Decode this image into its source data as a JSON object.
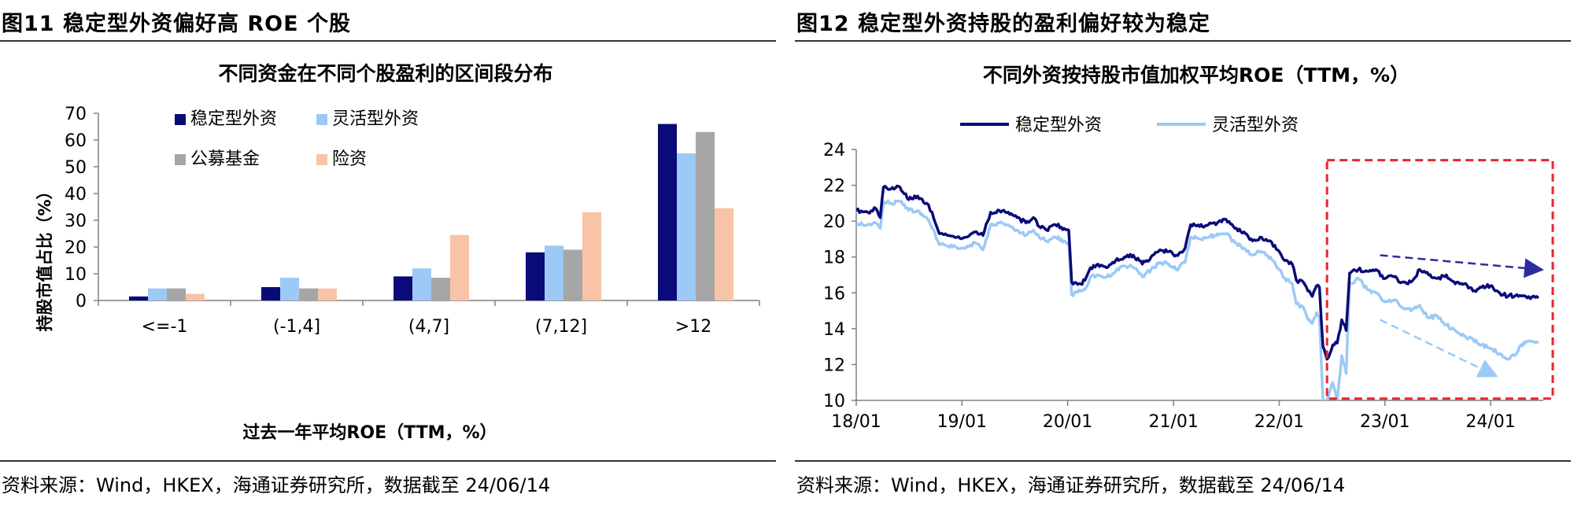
{
  "left": {
    "figure_title": "图11 稳定型外资偏好高 ROE 个股",
    "source": "资料来源：Wind，HKEX，海通证券研究所，数据截至 24/06/14"
  },
  "right": {
    "figure_title": "图12 稳定型外资持股的盈利偏好较为稳定",
    "source": "资料来源：Wind，HKEX，海通证券研究所，数据截至 24/06/14"
  },
  "chart_data": [
    {
      "type": "bar",
      "title": "不同资金在不同个股盈利的区间段分布",
      "xlabel": "过去一年平均ROE（TTM，%）",
      "ylabel": "持股市值占比（%）",
      "ylim": [
        0,
        70
      ],
      "yticks": [
        0,
        10,
        20,
        30,
        40,
        50,
        60,
        70
      ],
      "categories": [
        "<=-1",
        "(-1,4]",
        "(4,7]",
        "(7,12]",
        ">12"
      ],
      "series": [
        {
          "name": "稳定型外资",
          "color": "#0a0a78",
          "values": [
            1.5,
            5,
            9,
            18,
            66
          ]
        },
        {
          "name": "灵活型外资",
          "color": "#9cc9f6",
          "values": [
            4.5,
            8.5,
            12,
            20.5,
            55
          ]
        },
        {
          "name": "公募基金",
          "color": "#a6a6a6",
          "values": [
            4.5,
            4.5,
            8.5,
            19,
            63
          ]
        },
        {
          "name": "险资",
          "color": "#f8c3a6",
          "values": [
            2.5,
            4.5,
            24.5,
            33,
            34.5
          ]
        }
      ],
      "legend": "top-left, two columns",
      "grid": false
    },
    {
      "type": "line",
      "title": "不同外资按持股市值加权平均ROE（TTM，%）",
      "ylim": [
        10,
        24
      ],
      "yticks": [
        10,
        12,
        14,
        16,
        18,
        20,
        22,
        24
      ],
      "xlim": [
        "2018-01-01",
        "2024-07-01"
      ],
      "xticks": [
        "18/01",
        "19/01",
        "20/01",
        "21/01",
        "22/01",
        "23/01",
        "24/01"
      ],
      "legend": "top-center",
      "grid": false,
      "annotations": [
        "red dashed box from about 2022-06 to the end",
        "dashed dark-blue arrow pointing down-right",
        "dashed light-blue arrow pointing down-right"
      ],
      "series": [
        {
          "name": "稳定型外资",
          "color": "#0a0a78",
          "points": [
            [
              "2018-01-01",
              20.6
            ],
            [
              "2018-02-10",
              20.5
            ],
            [
              "2018-03-10",
              20.7
            ],
            [
              "2018-03-25",
              20.2
            ],
            [
              "2018-04-05",
              21.9
            ],
            [
              "2018-05-01",
              21.8
            ],
            [
              "2018-06-01",
              21.9
            ],
            [
              "2018-07-01",
              21.2
            ],
            [
              "2018-08-01",
              21.4
            ],
            [
              "2018-09-01",
              21.0
            ],
            [
              "2018-09-20",
              20.5
            ],
            [
              "2018-10-15",
              19.3
            ],
            [
              "2018-11-15",
              19.2
            ],
            [
              "2018-12-15",
              19.1
            ],
            [
              "2019-01-15",
              19.1
            ],
            [
              "2019-02-15",
              19.4
            ],
            [
              "2019-03-15",
              19.2
            ],
            [
              "2019-04-10",
              20.5
            ],
            [
              "2019-05-10",
              20.6
            ],
            [
              "2019-06-10",
              20.5
            ],
            [
              "2019-07-10",
              20.2
            ],
            [
              "2019-08-10",
              19.9
            ],
            [
              "2019-09-05",
              20.2
            ],
            [
              "2019-09-25",
              19.7
            ],
            [
              "2019-10-20",
              19.5
            ],
            [
              "2019-11-20",
              19.8
            ],
            [
              "2019-12-20",
              19.6
            ],
            [
              "2020-01-05",
              19.5
            ],
            [
              "2020-01-15",
              16.6
            ],
            [
              "2020-02-15",
              16.5
            ],
            [
              "2020-03-01",
              16.7
            ],
            [
              "2020-03-20",
              17.4
            ],
            [
              "2020-04-15",
              17.6
            ],
            [
              "2020-05-15",
              17.4
            ],
            [
              "2020-06-15",
              17.8
            ],
            [
              "2020-07-15",
              18.0
            ],
            [
              "2020-08-15",
              18.1
            ],
            [
              "2020-09-15",
              17.6
            ],
            [
              "2020-10-15",
              18.0
            ],
            [
              "2020-11-15",
              18.4
            ],
            [
              "2020-12-15",
              18.3
            ],
            [
              "2021-01-10",
              18.1
            ],
            [
              "2021-02-10",
              18.5
            ],
            [
              "2021-03-01",
              19.8
            ],
            [
              "2021-04-01",
              19.7
            ],
            [
              "2021-05-01",
              19.8
            ],
            [
              "2021-06-01",
              19.9
            ],
            [
              "2021-07-01",
              20.1
            ],
            [
              "2021-08-01",
              19.6
            ],
            [
              "2021-09-01",
              19.4
            ],
            [
              "2021-10-01",
              18.9
            ],
            [
              "2021-11-01",
              19.1
            ],
            [
              "2021-12-01",
              18.9
            ],
            [
              "2022-01-01",
              18.3
            ],
            [
              "2022-01-20",
              17.8
            ],
            [
              "2022-02-15",
              17.6
            ],
            [
              "2022-03-01",
              16.7
            ],
            [
              "2022-03-25",
              16.6
            ],
            [
              "2022-04-10",
              16.1
            ],
            [
              "2022-04-25",
              15.8
            ],
            [
              "2022-05-10",
              16.4
            ],
            [
              "2022-05-20",
              16.3
            ],
            [
              "2022-06-01",
              13.0
            ],
            [
              "2022-06-15",
              12.3
            ],
            [
              "2022-07-05",
              13.1
            ],
            [
              "2022-07-20",
              13.2
            ],
            [
              "2022-08-05",
              14.5
            ],
            [
              "2022-08-20",
              13.9
            ],
            [
              "2022-09-01",
              17.1
            ],
            [
              "2022-10-01",
              17.3
            ],
            [
              "2022-11-01",
              17.2
            ],
            [
              "2022-12-01",
              17.3
            ],
            [
              "2023-01-01",
              16.8
            ],
            [
              "2023-02-01",
              16.9
            ],
            [
              "2023-03-01",
              16.6
            ],
            [
              "2023-04-01",
              16.6
            ],
            [
              "2023-05-01",
              17.3
            ],
            [
              "2023-06-01",
              17.0
            ],
            [
              "2023-07-01",
              16.8
            ],
            [
              "2023-08-01",
              17.0
            ],
            [
              "2023-09-01",
              16.5
            ],
            [
              "2023-10-01",
              16.5
            ],
            [
              "2023-11-01",
              16.1
            ],
            [
              "2023-12-01",
              16.3
            ],
            [
              "2024-01-01",
              16.4
            ],
            [
              "2024-02-01",
              16.0
            ],
            [
              "2024-03-01",
              15.8
            ],
            [
              "2024-04-01",
              15.9
            ],
            [
              "2024-05-01",
              15.8
            ],
            [
              "2024-06-14",
              15.7
            ]
          ]
        },
        {
          "name": "灵活型外资",
          "color": "#9cc9f6",
          "points": [
            [
              "2018-01-01",
              19.9
            ],
            [
              "2018-02-10",
              19.8
            ],
            [
              "2018-03-10",
              19.9
            ],
            [
              "2018-03-25",
              19.6
            ],
            [
              "2018-04-05",
              21.1
            ],
            [
              "2018-05-01",
              21.0
            ],
            [
              "2018-06-01",
              21.1
            ],
            [
              "2018-07-01",
              20.6
            ],
            [
              "2018-08-01",
              20.6
            ],
            [
              "2018-09-01",
              20.2
            ],
            [
              "2018-09-20",
              19.6
            ],
            [
              "2018-10-15",
              18.7
            ],
            [
              "2018-11-15",
              18.6
            ],
            [
              "2018-12-15",
              18.5
            ],
            [
              "2019-01-15",
              18.5
            ],
            [
              "2019-02-15",
              18.8
            ],
            [
              "2019-03-15",
              18.4
            ],
            [
              "2019-04-10",
              19.8
            ],
            [
              "2019-05-10",
              19.9
            ],
            [
              "2019-06-10",
              19.8
            ],
            [
              "2019-07-10",
              19.5
            ],
            [
              "2019-08-10",
              19.2
            ],
            [
              "2019-09-05",
              19.5
            ],
            [
              "2019-09-25",
              19.1
            ],
            [
              "2019-10-20",
              18.9
            ],
            [
              "2019-11-20",
              19.1
            ],
            [
              "2019-12-20",
              18.9
            ],
            [
              "2020-01-05",
              18.8
            ],
            [
              "2020-01-15",
              15.9
            ],
            [
              "2020-02-15",
              16.1
            ],
            [
              "2020-03-01",
              16.2
            ],
            [
              "2020-03-20",
              16.9
            ],
            [
              "2020-04-15",
              17.0
            ],
            [
              "2020-05-15",
              16.9
            ],
            [
              "2020-06-15",
              17.2
            ],
            [
              "2020-07-15",
              17.5
            ],
            [
              "2020-08-15",
              17.4
            ],
            [
              "2020-09-15",
              16.9
            ],
            [
              "2020-10-15",
              17.3
            ],
            [
              "2020-11-15",
              17.7
            ],
            [
              "2020-12-15",
              17.6
            ],
            [
              "2021-01-10",
              17.3
            ],
            [
              "2021-02-10",
              17.7
            ],
            [
              "2021-03-01",
              19.1
            ],
            [
              "2021-04-01",
              19.0
            ],
            [
              "2021-05-01",
              19.1
            ],
            [
              "2021-06-01",
              19.3
            ],
            [
              "2021-07-01",
              19.3
            ],
            [
              "2021-08-01",
              18.8
            ],
            [
              "2021-09-01",
              18.5
            ],
            [
              "2021-10-01",
              18.1
            ],
            [
              "2021-11-01",
              18.3
            ],
            [
              "2021-12-01",
              18.0
            ],
            [
              "2022-01-01",
              17.3
            ],
            [
              "2022-01-20",
              16.8
            ],
            [
              "2022-02-15",
              16.5
            ],
            [
              "2022-03-01",
              15.4
            ],
            [
              "2022-03-25",
              15.2
            ],
            [
              "2022-04-10",
              14.5
            ],
            [
              "2022-04-25",
              14.3
            ],
            [
              "2022-05-10",
              14.9
            ],
            [
              "2022-05-20",
              14.7
            ],
            [
              "2022-06-01",
              10.0
            ],
            [
              "2022-06-15",
              10.0
            ],
            [
              "2022-07-05",
              11.0
            ],
            [
              "2022-07-20",
              10.0
            ],
            [
              "2022-08-05",
              12.5
            ],
            [
              "2022-08-20",
              11.5
            ],
            [
              "2022-09-01",
              16.5
            ],
            [
              "2022-10-01",
              16.8
            ],
            [
              "2022-11-01",
              16.2
            ],
            [
              "2022-12-01",
              16.0
            ],
            [
              "2023-01-01",
              15.5
            ],
            [
              "2023-02-01",
              15.6
            ],
            [
              "2023-03-01",
              15.2
            ],
            [
              "2023-04-01",
              15.0
            ],
            [
              "2023-05-01",
              15.3
            ],
            [
              "2023-06-01",
              14.6
            ],
            [
              "2023-07-01",
              14.7
            ],
            [
              "2023-08-01",
              14.2
            ],
            [
              "2023-09-01",
              13.9
            ],
            [
              "2023-10-01",
              13.6
            ],
            [
              "2023-11-01",
              13.4
            ],
            [
              "2023-12-01",
              13.1
            ],
            [
              "2024-01-01",
              12.9
            ],
            [
              "2024-02-01",
              12.6
            ],
            [
              "2024-03-01",
              12.3
            ],
            [
              "2024-03-25",
              12.5
            ],
            [
              "2024-04-15",
              13.1
            ],
            [
              "2024-05-10",
              13.3
            ],
            [
              "2024-06-14",
              13.2
            ]
          ]
        }
      ]
    }
  ]
}
